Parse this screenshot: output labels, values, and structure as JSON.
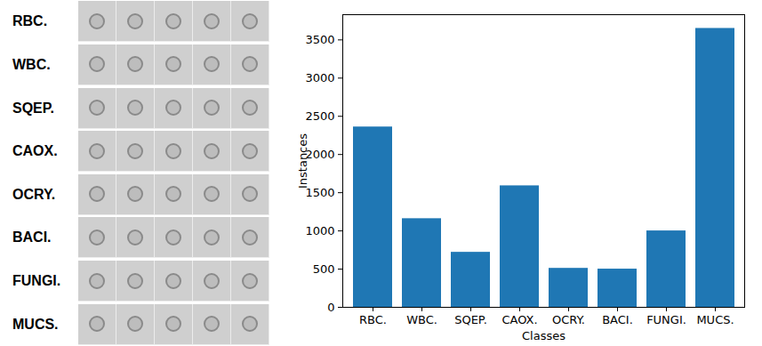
{
  "image_grid": {
    "rows": [
      "RBC.",
      "WBC.",
      "SQEP.",
      "CAOX.",
      "OCRY.",
      "BACI.",
      "FUNGI.",
      "MUCS."
    ]
  },
  "chart_data": {
    "type": "bar",
    "x_label": "Classes",
    "y_label": "Instances",
    "categories": [
      "RBC.",
      "WBC.",
      "SQEP.",
      "CAOX.",
      "OCRY.",
      "BACI.",
      "FUNGI.",
      "MUCS."
    ],
    "values": [
      2360,
      1160,
      720,
      1590,
      510,
      500,
      1000,
      3650
    ],
    "color": "#1f77b4",
    "ylim": [
      0,
      3830
    ],
    "yticks": [
      0,
      500,
      1000,
      1500,
      2000,
      2500,
      3000,
      3500
    ],
    "grid": false
  }
}
